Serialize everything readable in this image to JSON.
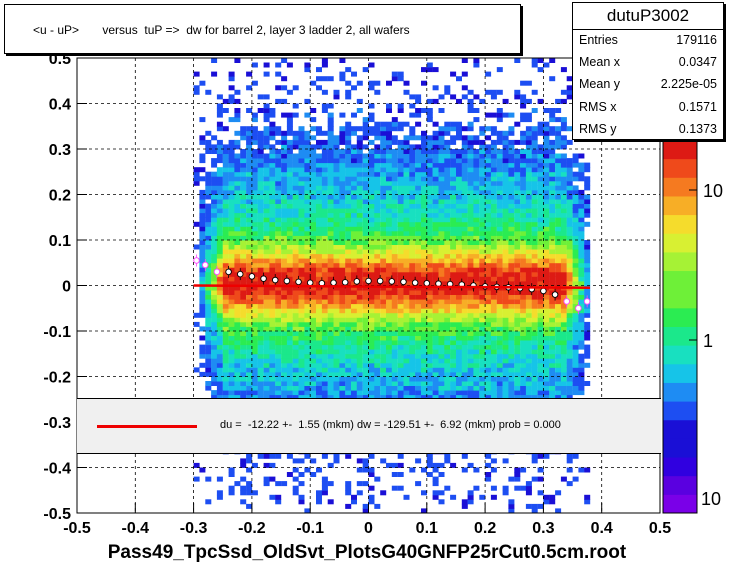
{
  "title": "<u - uP>       versus  tuP =>  dw for barrel 2, layer 3 ladder 2, all wafers",
  "stats": {
    "name": "dutuP3002",
    "rows": [
      {
        "label": "Entries",
        "value": "179116"
      },
      {
        "label": "Mean x",
        "value": "0.0347"
      },
      {
        "label": "Mean y",
        "value": "2.225e-05"
      },
      {
        "label": "RMS x",
        "value": "0.1571"
      },
      {
        "label": "RMS y",
        "value": "0.1373"
      }
    ]
  },
  "fit_text": "du =  -12.22 +-  1.55 (mkm) dw = -129.51 +-  6.92 (mkm) prob = 0.000",
  "xaxis_title": "Pass49_TpcSsd_OldSvt_PlotsG40GNFP25rCut0.5cm.root",
  "colors": {
    "fit": "#ee0000",
    "profile": "#000000",
    "profile_alt": "#ff44ff"
  },
  "chart_data": {
    "type": "heatmap",
    "title": "<u - uP>       versus  tuP =>  dw for barrel 2, layer 3 ladder 2, all wafers",
    "xlabel": "Pass49_TpcSsd_OldSvt_PlotsG40GNFP25rCut0.5cm.root",
    "ylabel": "",
    "xlim": [
      -0.5,
      0.5
    ],
    "ylim": [
      -0.5,
      0.5
    ],
    "x_ticks": [
      "-0.5",
      "-0.4",
      "-0.3",
      "-0.2",
      "-0.1",
      "0",
      "0.1",
      "0.2",
      "0.3",
      "0.4",
      "0.5"
    ],
    "y_ticks": [
      "-0.5",
      "-0.4",
      "-0.3",
      "-0.2",
      "-0.1",
      "0",
      "0.1",
      "0.2",
      "0.3",
      "0.4",
      "0.5"
    ],
    "grid": true,
    "colorbar": {
      "scale": "log",
      "ticks": [
        "1",
        "10"
      ]
    },
    "occupied_x_range": [
      -0.3,
      0.38
    ],
    "profile_series": {
      "name": "profile",
      "x": [
        -0.295,
        -0.28,
        -0.26,
        -0.24,
        -0.22,
        -0.2,
        -0.18,
        -0.16,
        -0.14,
        -0.12,
        -0.1,
        -0.08,
        -0.06,
        -0.04,
        -0.02,
        0.0,
        0.02,
        0.04,
        0.06,
        0.08,
        0.1,
        0.12,
        0.14,
        0.16,
        0.18,
        0.2,
        0.22,
        0.24,
        0.26,
        0.28,
        0.3,
        0.32,
        0.34,
        0.36,
        0.375
      ],
      "y": [
        0.055,
        0.045,
        0.03,
        0.03,
        0.025,
        0.02,
        0.015,
        0.012,
        0.01,
        0.008,
        0.006,
        0.005,
        0.006,
        0.007,
        0.009,
        0.01,
        0.01,
        0.009,
        0.008,
        0.006,
        0.005,
        0.004,
        0.003,
        0.002,
        0.0,
        -0.002,
        -0.003,
        -0.004,
        -0.006,
        -0.008,
        -0.012,
        -0.02,
        -0.035,
        -0.05,
        -0.035
      ]
    },
    "fit_line": {
      "x": [
        -0.3,
        0.38
      ],
      "y": [
        0.0,
        -0.005
      ]
    }
  }
}
